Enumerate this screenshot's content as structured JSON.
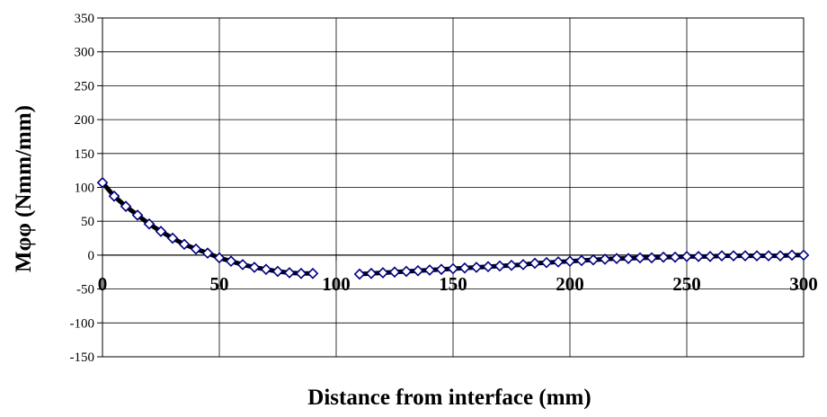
{
  "chart_data": {
    "type": "line",
    "title": "",
    "xlabel": "Distance from interface (mm)",
    "ylabel": "Mφφ (Nmm/mm)",
    "xlim": [
      0,
      300
    ],
    "ylim": [
      -150,
      350
    ],
    "x_ticks": [
      "0",
      "50",
      "100",
      "150",
      "200",
      "250",
      "300"
    ],
    "y_ticks": [
      "350",
      "300",
      "250",
      "200",
      "150",
      "100",
      "50",
      "0",
      "-50",
      "-100",
      "-150"
    ],
    "grid": true,
    "legend": "none",
    "series": [
      {
        "marker": "diamond",
        "line_color": "#000000",
        "marker_color": "#000080",
        "x": [
          0,
          5,
          10,
          15,
          20,
          25,
          30,
          35,
          40,
          45,
          50,
          55,
          60,
          65,
          70,
          75,
          80,
          85,
          90,
          110,
          115,
          120,
          125,
          130,
          135,
          140,
          145,
          150,
          155,
          160,
          165,
          170,
          175,
          180,
          185,
          190,
          195,
          200,
          205,
          210,
          215,
          220,
          225,
          230,
          235,
          240,
          245,
          250,
          255,
          260,
          265,
          270,
          275,
          280,
          285,
          290,
          295,
          300
        ],
        "y": [
          107,
          87,
          72,
          59,
          46,
          35,
          25,
          16,
          9,
          3,
          -4,
          -9,
          -14,
          -18,
          -21,
          -24,
          -26,
          -27,
          -27,
          -28,
          -27,
          -26,
          -25,
          -24,
          -23,
          -22,
          -21,
          -20,
          -19,
          -18,
          -17,
          -16,
          -15,
          -14,
          -12,
          -11,
          -10,
          -9,
          -8,
          -7,
          -6,
          -5,
          -5,
          -4,
          -4,
          -3,
          -3,
          -2,
          -2,
          -2,
          -1,
          -1,
          -1,
          -1,
          -1,
          -1,
          0,
          0
        ]
      }
    ]
  }
}
